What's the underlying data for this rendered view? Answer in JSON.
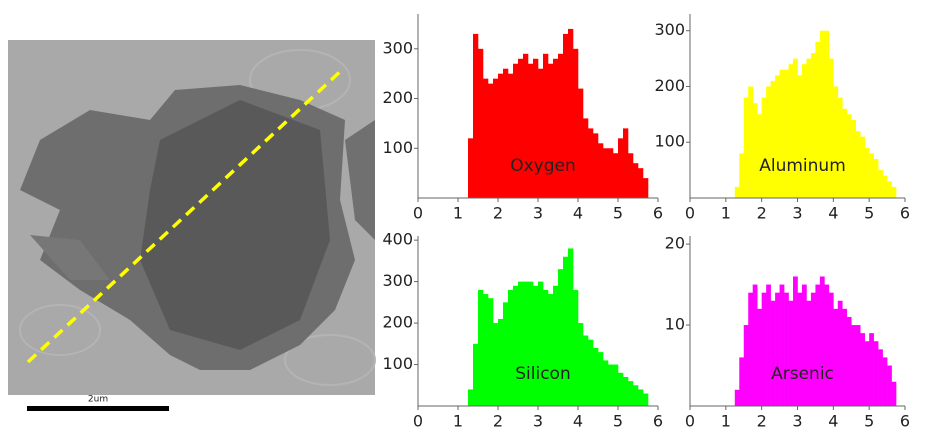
{
  "image": {
    "scale_label": "2um"
  },
  "chart_data": [
    {
      "type": "histogram",
      "name": "Oxygen",
      "color": "#ff0000",
      "bins": [
        1.25,
        1.375,
        1.5,
        1.625,
        1.75,
        1.875,
        2,
        2.125,
        2.25,
        2.375,
        2.5,
        2.625,
        2.75,
        2.875,
        3,
        3.125,
        3.25,
        3.375,
        3.5,
        3.625,
        3.75,
        3.875,
        4,
        4.125,
        4.25,
        4.375,
        4.5,
        4.625,
        4.75,
        4.875,
        5,
        5.125,
        5.25,
        5.375,
        5.5,
        5.625,
        5.75
      ],
      "counts": [
        120,
        330,
        300,
        240,
        230,
        240,
        250,
        260,
        250,
        270,
        280,
        290,
        270,
        280,
        260,
        290,
        270,
        280,
        290,
        330,
        340,
        300,
        220,
        160,
        140,
        130,
        110,
        100,
        100,
        90,
        120,
        140,
        90,
        70,
        60,
        40
      ],
      "xlim": [
        0,
        6
      ],
      "xticks": [
        0,
        1,
        2,
        3,
        4,
        5,
        6
      ],
      "ylim": [
        0,
        370
      ],
      "yticks": [
        100,
        200,
        300
      ]
    },
    {
      "type": "histogram",
      "name": "Aluminum",
      "color": "#ffff00",
      "bins": [
        1.25,
        1.375,
        1.5,
        1.625,
        1.75,
        1.875,
        2,
        2.125,
        2.25,
        2.375,
        2.5,
        2.625,
        2.75,
        2.875,
        3,
        3.125,
        3.25,
        3.375,
        3.5,
        3.625,
        3.75,
        3.875,
        4,
        4.125,
        4.25,
        4.375,
        4.5,
        4.625,
        4.75,
        4.875,
        5,
        5.125,
        5.25,
        5.375,
        5.5,
        5.625,
        5.75
      ],
      "counts": [
        20,
        80,
        180,
        200,
        170,
        150,
        180,
        200,
        210,
        220,
        230,
        230,
        240,
        250,
        220,
        240,
        250,
        260,
        280,
        300,
        300,
        250,
        200,
        180,
        160,
        150,
        140,
        120,
        110,
        90,
        80,
        70,
        50,
        40,
        30,
        20
      ],
      "xlim": [
        0,
        6
      ],
      "xticks": [
        0,
        1,
        2,
        3,
        4,
        5,
        6
      ],
      "ylim": [
        0,
        330
      ],
      "yticks": [
        100,
        200,
        300
      ]
    },
    {
      "type": "histogram",
      "name": "Silicon",
      "color": "#00ff00",
      "bins": [
        1.25,
        1.375,
        1.5,
        1.625,
        1.75,
        1.875,
        2,
        2.125,
        2.25,
        2.375,
        2.5,
        2.625,
        2.75,
        2.875,
        3,
        3.125,
        3.25,
        3.375,
        3.5,
        3.625,
        3.75,
        3.875,
        4,
        4.125,
        4.25,
        4.375,
        4.5,
        4.625,
        4.75,
        4.875,
        5,
        5.125,
        5.25,
        5.375,
        5.5,
        5.625,
        5.75
      ],
      "counts": [
        40,
        150,
        280,
        270,
        260,
        200,
        210,
        250,
        280,
        290,
        300,
        300,
        300,
        290,
        300,
        280,
        270,
        290,
        330,
        360,
        380,
        280,
        200,
        170,
        160,
        140,
        130,
        110,
        100,
        100,
        80,
        70,
        60,
        50,
        40,
        30
      ],
      "xlim": [
        0,
        6
      ],
      "xticks": [
        0,
        1,
        2,
        3,
        4,
        5,
        6
      ],
      "ylim": [
        0,
        410
      ],
      "yticks": [
        100,
        200,
        300,
        400
      ]
    },
    {
      "type": "histogram",
      "name": "Arsenic",
      "color": "#ff00ff",
      "bins": [
        1.25,
        1.375,
        1.5,
        1.625,
        1.75,
        1.875,
        2,
        2.125,
        2.25,
        2.375,
        2.5,
        2.625,
        2.75,
        2.875,
        3,
        3.125,
        3.25,
        3.375,
        3.5,
        3.625,
        3.75,
        3.875,
        4,
        4.125,
        4.25,
        4.375,
        4.5,
        4.625,
        4.75,
        4.875,
        5,
        5.125,
        5.25,
        5.375,
        5.5,
        5.625,
        5.75
      ],
      "counts": [
        2,
        6,
        10,
        14,
        15,
        12,
        14,
        15,
        13,
        14,
        15,
        14,
        13,
        16,
        14,
        15,
        13,
        14,
        15,
        16,
        15,
        14,
        12,
        13,
        12,
        11,
        10,
        10,
        9,
        8,
        9,
        8,
        7,
        6,
        5,
        3
      ],
      "xlim": [
        0,
        6
      ],
      "xticks": [
        0,
        1,
        2,
        3,
        4,
        5,
        6
      ],
      "ylim": [
        0,
        21
      ],
      "yticks": [
        10,
        20
      ]
    }
  ]
}
